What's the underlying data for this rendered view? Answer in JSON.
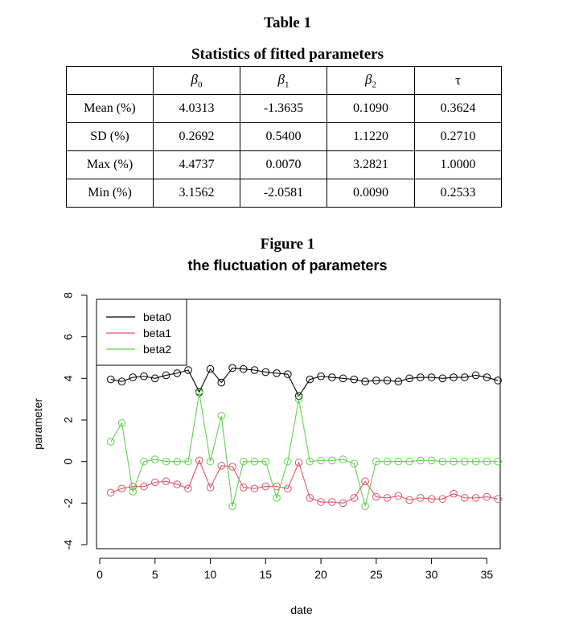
{
  "table": {
    "caption": "Table 1",
    "subcaption": "Statistics of fitted parameters",
    "headers": [
      "",
      "β",
      "β",
      "β",
      "τ"
    ],
    "header_subscripts": [
      "",
      "0",
      "1",
      "2",
      ""
    ],
    "rows": [
      {
        "label": "Mean (%)",
        "values": [
          "4.0313",
          "-1.3635",
          "0.1090",
          "0.3624"
        ]
      },
      {
        "label": "SD (%)",
        "values": [
          "0.2692",
          "0.5400",
          "1.1220",
          "0.2710"
        ]
      },
      {
        "label": "Max (%)",
        "values": [
          "4.4737",
          "0.0070",
          "3.2821",
          "1.0000"
        ]
      },
      {
        "label": "Min (%)",
        "values": [
          "3.1562",
          "-2.0581",
          "0.0090",
          "0.2533"
        ]
      }
    ]
  },
  "figure": {
    "caption": "Figure 1",
    "subcaption": "the fluctuation of parameters"
  },
  "chart_data": {
    "type": "line",
    "xlabel": "date",
    "ylabel": "parameter",
    "xlim": [
      0,
      36.5
    ],
    "ylim": [
      -4,
      8
    ],
    "xticks": [
      0,
      5,
      10,
      15,
      20,
      25,
      30,
      35
    ],
    "yticks": [
      -4,
      -2,
      0,
      2,
      4,
      6,
      8
    ],
    "grid": false,
    "legend_position": "top-left",
    "x": [
      1,
      2,
      3,
      4,
      5,
      6,
      7,
      8,
      9,
      10,
      11,
      12,
      13,
      14,
      15,
      16,
      17,
      18,
      19,
      20,
      21,
      22,
      23,
      24,
      25,
      26,
      27,
      28,
      29,
      30,
      31,
      32,
      33,
      34,
      35,
      36
    ],
    "series": [
      {
        "name": "beta0",
        "color": "#000000",
        "values": [
          3.95,
          3.85,
          4.05,
          4.1,
          4.0,
          4.15,
          4.25,
          4.4,
          3.35,
          4.45,
          3.8,
          4.5,
          4.45,
          4.4,
          4.3,
          4.25,
          4.2,
          3.15,
          3.95,
          4.1,
          4.05,
          4.0,
          3.95,
          3.85,
          3.9,
          3.9,
          3.85,
          4.0,
          4.05,
          4.05,
          4.0,
          4.05,
          4.05,
          4.15,
          4.05,
          3.9
        ]
      },
      {
        "name": "beta1",
        "color": "#df536b",
        "values": [
          -1.5,
          -1.3,
          -1.2,
          -1.2,
          -1.0,
          -0.95,
          -1.1,
          -1.3,
          0.05,
          -1.25,
          -0.2,
          -0.25,
          -1.25,
          -1.3,
          -1.2,
          -1.2,
          -1.3,
          -0.05,
          -1.75,
          -1.95,
          -1.95,
          -2.0,
          -1.75,
          -0.95,
          -1.7,
          -1.75,
          -1.65,
          -1.85,
          -1.75,
          -1.8,
          -1.8,
          -1.55,
          -1.75,
          -1.75,
          -1.7,
          -1.8
        ]
      },
      {
        "name": "beta2",
        "color": "#61d04f",
        "values": [
          0.95,
          1.85,
          -1.45,
          0.0,
          0.1,
          0.0,
          0.0,
          0.0,
          3.3,
          0.0,
          2.2,
          -2.15,
          0.0,
          0.0,
          0.0,
          -1.75,
          0.0,
          3.0,
          0.0,
          0.05,
          0.05,
          0.1,
          -0.1,
          -2.15,
          0.0,
          0.0,
          0.0,
          0.0,
          0.05,
          0.05,
          0.0,
          0.0,
          0.0,
          0.0,
          0.0,
          0.0
        ]
      }
    ]
  }
}
